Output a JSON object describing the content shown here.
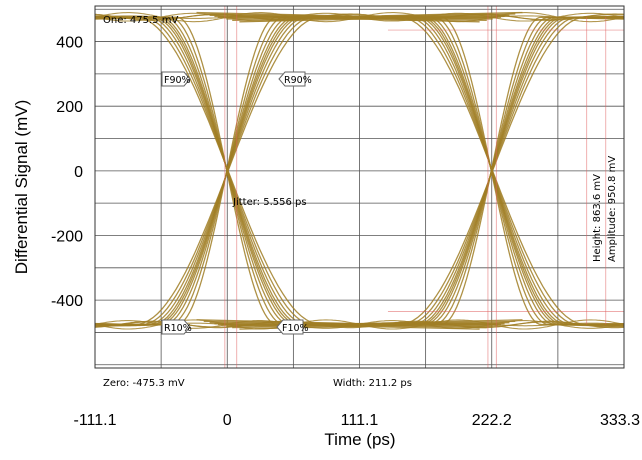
{
  "chart_data": {
    "type": "line",
    "title": "",
    "xlabel": "Time (ps)",
    "ylabel": "Differential Signal (mV)",
    "xlim": [
      -111.1,
      333.3
    ],
    "ylim": [
      -610,
      510
    ],
    "x_ticks": [
      "-111.1",
      "0",
      "111.1",
      "222.2",
      "333.3"
    ],
    "x_tick_values": [
      -111.1,
      0,
      111.1,
      222.2,
      333.3
    ],
    "y_ticks": [
      "400",
      "200",
      "0",
      "-200",
      "-400"
    ],
    "y_tick_values": [
      400,
      200,
      0,
      -200,
      -400
    ],
    "grid": true,
    "series": [
      {
        "values_note": "",
        "color": "#a07e25"
      }
    ],
    "eye": {
      "one_level": 475.5,
      "zero_level": -475.3,
      "crossings_x": [
        0,
        222.2
      ],
      "transition_half_width": 60,
      "line_color": "#a07e25"
    },
    "annotations": {
      "one": "One: 475.5 mV",
      "zero": "Zero: -475.3 mV",
      "jitter": "Jitter: 5.556 ps",
      "width": "Width: 211.2 ps",
      "height": "Height: 863.6 mV",
      "amplitude": "Amplitude: 950.8 mV",
      "f90": "F90%",
      "r90": "R90%",
      "r10": "R10%",
      "f10": "F10%"
    },
    "colors": {
      "trace": "#a07e25",
      "marker": "#e06060",
      "grid": "#555555"
    }
  }
}
